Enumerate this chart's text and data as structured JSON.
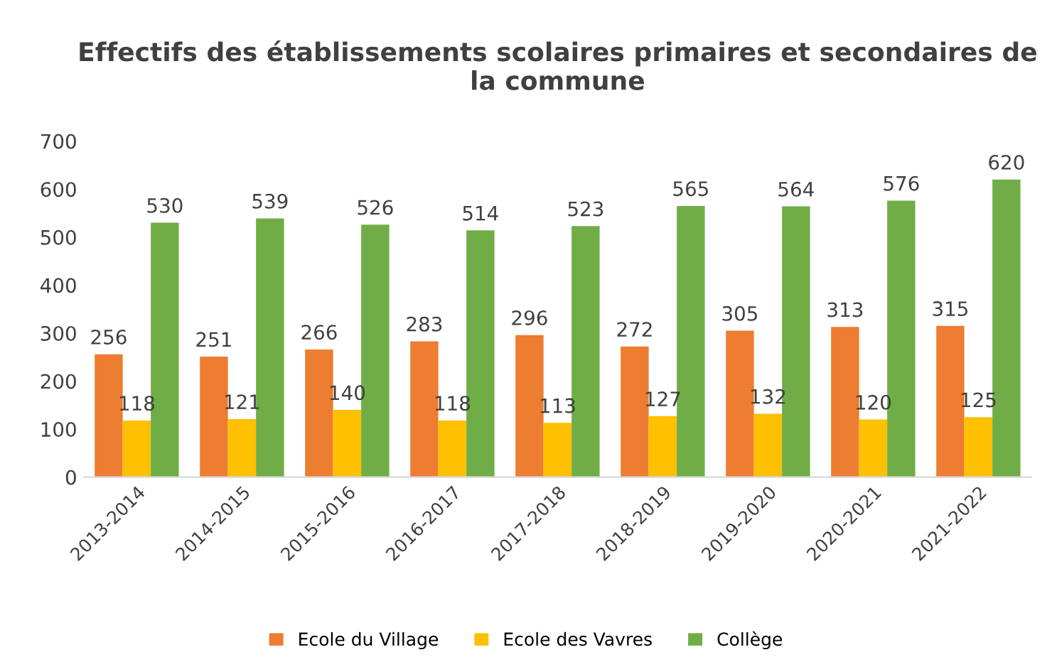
{
  "chart_data": {
    "type": "bar",
    "title": "Effectifs des établissements scolaires primaires et secondaires de la commune",
    "categories": [
      "2013-2014",
      "2014-2015",
      "2015-2016",
      "2016-2017",
      "2017-2018",
      "2018-2019",
      "2019-2020",
      "2020-2021",
      "2021-2022"
    ],
    "series": [
      {
        "name": "Ecole du Village",
        "color": "#ed7d31",
        "values": [
          256,
          251,
          266,
          283,
          296,
          272,
          305,
          313,
          315
        ]
      },
      {
        "name": "Ecole des Vavres",
        "color": "#ffc000",
        "values": [
          118,
          121,
          140,
          118,
          113,
          127,
          132,
          120,
          125
        ]
      },
      {
        "name": "Collège",
        "color": "#70ad47",
        "values": [
          530,
          539,
          526,
          514,
          523,
          565,
          564,
          576,
          620
        ]
      }
    ],
    "ylim": [
      0,
      700
    ],
    "yticks": [
      0,
      100,
      200,
      300,
      400,
      500,
      600,
      700
    ],
    "data_labels": true,
    "legend": "bottom",
    "grid": false
  }
}
